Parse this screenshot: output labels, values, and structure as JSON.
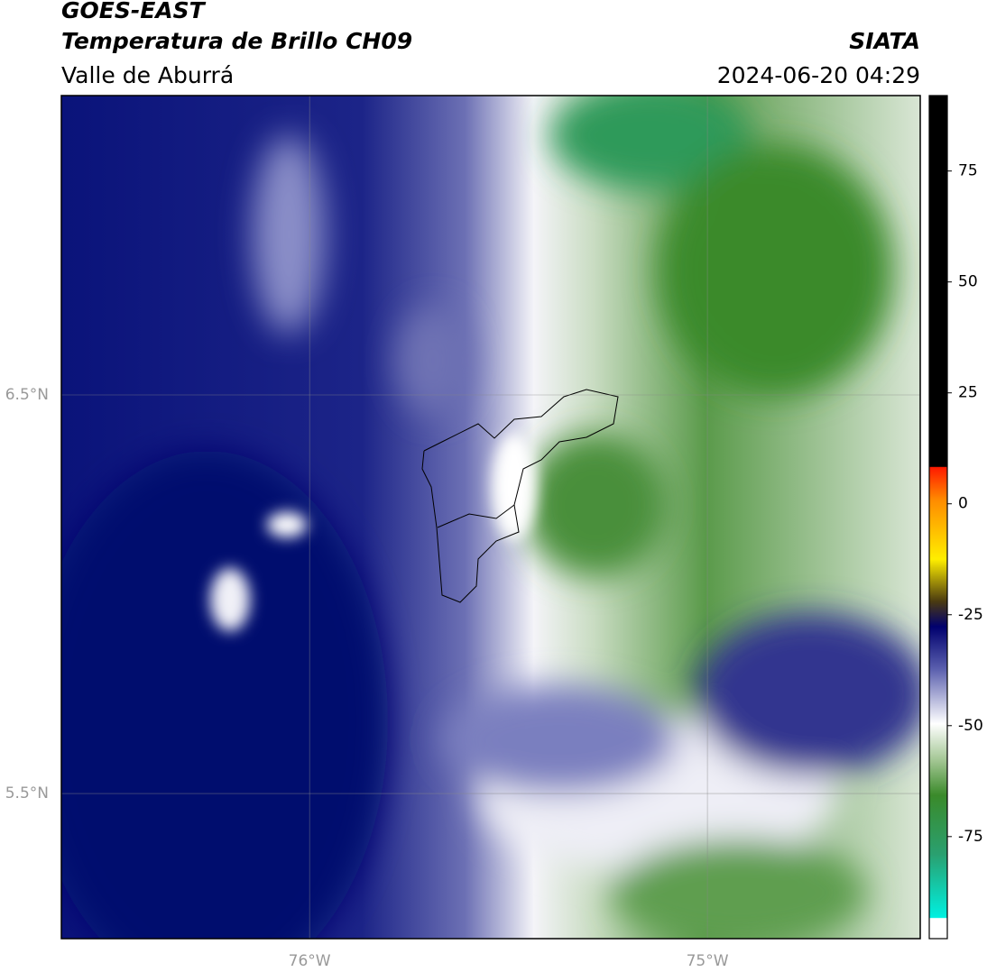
{
  "header": {
    "title": "GOES-EAST",
    "subtitle": "Temperatura de Brillo CH09",
    "region": "Valle de Aburrá",
    "source": "SIATA",
    "datetime": "2024-06-20 04:29"
  },
  "map": {
    "xlim": [
      -76.624,
      -74.465
    ],
    "ylim": [
      5.136,
      7.251
    ],
    "xticks": [
      {
        "value": -76,
        "label": "76°W"
      },
      {
        "value": -75,
        "label": "75°W"
      }
    ],
    "yticks": [
      {
        "value": 6.5,
        "label": "6.5°N"
      },
      {
        "value": 5.5,
        "label": "5.5°N"
      }
    ],
    "grid": true
  },
  "colorbar": {
    "clim": [
      -98,
      92
    ],
    "ticks": [
      75,
      50,
      25,
      0,
      -25,
      -50,
      -75
    ]
  }
}
